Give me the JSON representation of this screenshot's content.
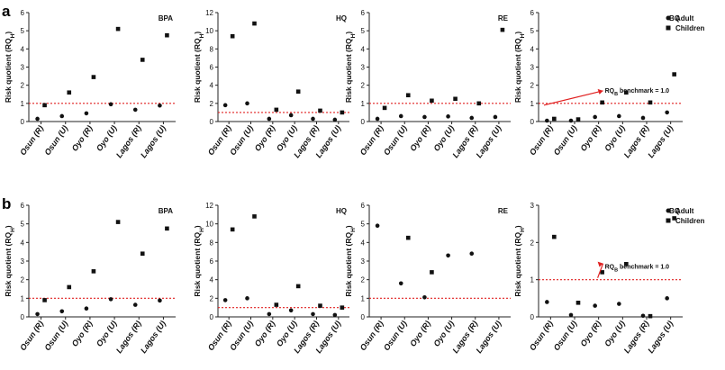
{
  "panel_labels": [
    "a",
    "b"
  ],
  "legend": {
    "adult": "Adult",
    "children": "Children"
  },
  "benchmark_annotation": {
    "prefix": "RQ",
    "sub": "B",
    "suffix": " benchmark = 1.0"
  },
  "colors": {
    "benchmark": "#e02020",
    "marker": "#111111",
    "axis": "#222222",
    "arrow": "#e02020"
  },
  "chart_data": [
    {
      "row": "a",
      "type": "scatter",
      "title": "BPA",
      "ylabel": "Risk quotient (RQ",
      "ylabel_sub": "H",
      "ylabel_end": ")",
      "categories": [
        "Osun (R)",
        "Osun (U)",
        "Oyo (R)",
        "Oyo (U)",
        "Lagos (R)",
        "Lagos (U)"
      ],
      "ylim": [
        0,
        6
      ],
      "yticks": [
        "0",
        "1",
        "2",
        "3",
        "4",
        "5",
        "6"
      ],
      "benchmark": 1.0,
      "series": [
        {
          "name": "Adult",
          "values": [
            0.15,
            0.3,
            0.45,
            0.95,
            0.65,
            0.88
          ]
        },
        {
          "name": "Children",
          "values": [
            0.9,
            1.6,
            2.45,
            5.1,
            3.4,
            4.75
          ]
        }
      ]
    },
    {
      "row": "a",
      "type": "scatter",
      "title": "HQ",
      "ylabel": "Risk quotient (RQ",
      "ylabel_sub": "H",
      "ylabel_end": ")",
      "categories": [
        "Osun (R)",
        "Osun (U)",
        "Oyo (R)",
        "Oyo (U)",
        "Lagos (R)",
        "Lagos (U)"
      ],
      "ylim": [
        0,
        12
      ],
      "yticks": [
        "0",
        "2",
        "4",
        "6",
        "8",
        "10",
        "12"
      ],
      "benchmark": 1.0,
      "series": [
        {
          "name": "Adult",
          "values": [
            1.8,
            2.0,
            0.3,
            0.7,
            0.3,
            0.2
          ]
        },
        {
          "name": "Children",
          "values": [
            9.4,
            10.8,
            1.3,
            3.3,
            1.2,
            1.0
          ]
        }
      ]
    },
    {
      "row": "a",
      "type": "scatter",
      "title": "RE",
      "ylabel": "Risk quotient (RQ",
      "ylabel_sub": "H",
      "ylabel_end": ")",
      "categories": [
        "Osun (R)",
        "Osun (U)",
        "Oyo (R)",
        "Oyo (U)",
        "Lagos (R)",
        "Lagos (U)"
      ],
      "ylim": [
        0,
        6
      ],
      "yticks": [
        "0",
        "1",
        "2",
        "3",
        "4",
        "5",
        "6"
      ],
      "benchmark": 1.0,
      "series": [
        {
          "name": "Adult",
          "values": [
            0.15,
            0.3,
            0.25,
            0.28,
            0.2,
            0.25
          ]
        },
        {
          "name": "Children",
          "values": [
            0.75,
            1.45,
            1.15,
            1.25,
            1.0,
            5.05
          ]
        }
      ]
    },
    {
      "row": "a",
      "type": "scatter",
      "title": "BQ",
      "ylabel": "Risk quotient (RQ",
      "ylabel_sub": "H",
      "ylabel_end": ")",
      "categories": [
        "Osun (R)",
        "Osun (U)",
        "Oyo (R)",
        "Oyo (U)",
        "Lagos (R)",
        "Lagos (U)"
      ],
      "ylim": [
        0,
        6
      ],
      "yticks": [
        "0",
        "1",
        "2",
        "3",
        "4",
        "5",
        "6"
      ],
      "benchmark": 1.0,
      "annotation": true,
      "legend": true,
      "series": [
        {
          "name": "Adult",
          "values": [
            0.05,
            0.05,
            0.25,
            0.3,
            0.2,
            0.5
          ]
        },
        {
          "name": "Children",
          "values": [
            0.15,
            0.12,
            1.05,
            1.6,
            1.05,
            2.6
          ]
        }
      ]
    },
    {
      "row": "b",
      "type": "scatter",
      "title": "BPA",
      "ylabel": "Risk quotient (RQ",
      "ylabel_sub": "H",
      "ylabel_end": ")",
      "categories": [
        "Osun (R)",
        "Osun (U)",
        "Oyo (R)",
        "Oyo (U)",
        "Lagos (R)",
        "Lagos (U)"
      ],
      "ylim": [
        0,
        6
      ],
      "yticks": [
        "0",
        "1",
        "2",
        "3",
        "4",
        "5",
        "6"
      ],
      "benchmark": 1.0,
      "series": [
        {
          "name": "Adult",
          "values": [
            0.15,
            0.3,
            0.45,
            0.95,
            0.65,
            0.88
          ]
        },
        {
          "name": "Children",
          "values": [
            0.9,
            1.6,
            2.45,
            5.1,
            3.4,
            4.75
          ]
        }
      ]
    },
    {
      "row": "b",
      "type": "scatter",
      "title": "HQ",
      "ylabel": "Risk quotient (RQ",
      "ylabel_sub": "H",
      "ylabel_end": ")",
      "categories": [
        "Osun (R)",
        "Osun (U)",
        "Oyo (R)",
        "Oyo (U)",
        "Lagos (R)",
        "Lagos (U)"
      ],
      "ylim": [
        0,
        12
      ],
      "yticks": [
        "0",
        "2",
        "4",
        "6",
        "8",
        "10",
        "12"
      ],
      "benchmark": 1.0,
      "series": [
        {
          "name": "Adult",
          "values": [
            1.8,
            2.0,
            0.3,
            0.7,
            0.3,
            0.2
          ]
        },
        {
          "name": "Children",
          "values": [
            9.4,
            10.8,
            1.3,
            3.3,
            1.2,
            1.0
          ]
        }
      ]
    },
    {
      "row": "b",
      "type": "scatter",
      "title": "RE",
      "ylabel": "Risk quotient (RQ",
      "ylabel_sub": "H",
      "ylabel_end": ")",
      "categories": [
        "Osun (R)",
        "Osun (U)",
        "Oyo (R)",
        "Oyo (U)",
        "Lagos (R)",
        "Lagos (U)"
      ],
      "ylim": [
        0,
        6
      ],
      "yticks": [
        "0",
        "1",
        "2",
        "3",
        "4",
        "5",
        "6"
      ],
      "benchmark": 1.0,
      "series": [
        {
          "name": "Adult",
          "values": [
            4.9,
            1.8,
            1.05,
            3.3,
            3.4,
            null
          ]
        },
        {
          "name": "Children",
          "values": [
            null,
            4.25,
            2.4,
            null,
            null,
            null
          ]
        }
      ]
    },
    {
      "row": "b",
      "type": "scatter",
      "title": "BQ",
      "ylabel": "Risk quotient (RQ",
      "ylabel_sub": "H",
      "ylabel_end": ")",
      "categories": [
        "Osun (R)",
        "Osun (U)",
        "Oyo (R)",
        "Oyo (U)",
        "Lagos (R)",
        "Lagos (U)"
      ],
      "ylim": [
        0,
        3
      ],
      "yticks": [
        "0",
        "1",
        "2",
        "3"
      ],
      "benchmark": 1.0,
      "annotation": true,
      "legend": true,
      "series": [
        {
          "name": "Adult",
          "values": [
            0.4,
            0.05,
            0.3,
            0.35,
            0.03,
            0.5
          ]
        },
        {
          "name": "Children",
          "values": [
            2.15,
            0.38,
            1.2,
            1.42,
            0.02,
            2.65
          ]
        }
      ]
    }
  ]
}
